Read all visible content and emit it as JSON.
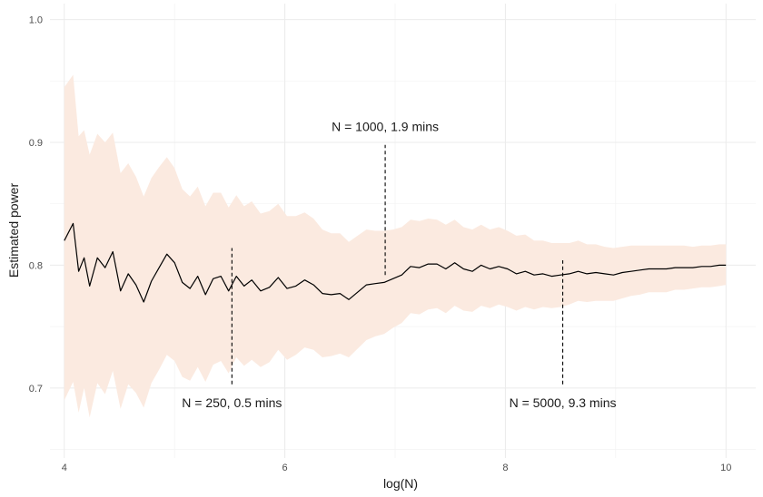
{
  "chart_data": {
    "type": "line",
    "title": "",
    "xlabel": "log(N)",
    "ylabel": "Estimated power",
    "xlim": [
      3.87,
      10.27
    ],
    "ylim": [
      0.643,
      1.013
    ],
    "x_ticks": [
      "4",
      "6",
      "8",
      "10"
    ],
    "y_ticks": [
      "0.7",
      "0.8",
      "0.9",
      "1.0"
    ],
    "grid": true,
    "colors": {
      "line": "#000000",
      "ribbon": "#fbeae0",
      "guide": "#000000"
    },
    "series": [
      {
        "x": [
          4.0,
          4.08,
          4.13,
          4.18,
          4.23,
          4.3,
          4.37,
          4.44,
          4.51,
          4.58,
          4.65,
          4.72,
          4.79,
          4.86,
          4.93,
          5.0,
          5.07,
          5.14,
          5.21,
          5.28,
          5.35,
          5.42,
          5.49,
          5.56,
          5.63,
          5.7,
          5.78,
          5.86,
          5.94,
          6.02,
          6.1,
          6.18,
          6.26,
          6.34,
          6.42,
          6.5,
          6.58,
          6.66,
          6.74,
          6.82,
          6.9,
          6.98,
          7.06,
          7.14,
          7.22,
          7.3,
          7.38,
          7.46,
          7.54,
          7.62,
          7.7,
          7.78,
          7.86,
          7.94,
          8.02,
          8.1,
          8.18,
          8.26,
          8.34,
          8.42,
          8.5,
          8.58,
          8.66,
          8.74,
          8.82,
          8.9,
          8.98,
          9.06,
          9.14,
          9.22,
          9.3,
          9.38,
          9.46,
          9.54,
          9.62,
          9.7,
          9.78,
          9.86,
          9.94,
          10.0
        ],
        "y": [
          0.82,
          0.834,
          0.795,
          0.806,
          0.783,
          0.806,
          0.798,
          0.811,
          0.779,
          0.793,
          0.784,
          0.77,
          0.787,
          0.798,
          0.809,
          0.802,
          0.786,
          0.781,
          0.791,
          0.776,
          0.789,
          0.791,
          0.779,
          0.791,
          0.783,
          0.788,
          0.779,
          0.782,
          0.79,
          0.781,
          0.783,
          0.788,
          0.784,
          0.777,
          0.776,
          0.777,
          0.772,
          0.778,
          0.784,
          0.785,
          0.786,
          0.789,
          0.792,
          0.799,
          0.798,
          0.801,
          0.801,
          0.797,
          0.802,
          0.797,
          0.795,
          0.8,
          0.797,
          0.799,
          0.797,
          0.793,
          0.795,
          0.792,
          0.793,
          0.791,
          0.792,
          0.793,
          0.795,
          0.793,
          0.794,
          0.793,
          0.792,
          0.794,
          0.795,
          0.796,
          0.797,
          0.797,
          0.797,
          0.798,
          0.798,
          0.798,
          0.799,
          0.799,
          0.8,
          0.8
        ],
        "lower": [
          0.69,
          0.705,
          0.68,
          0.7,
          0.676,
          0.704,
          0.695,
          0.714,
          0.683,
          0.703,
          0.696,
          0.684,
          0.704,
          0.715,
          0.727,
          0.722,
          0.709,
          0.706,
          0.717,
          0.705,
          0.719,
          0.722,
          0.712,
          0.725,
          0.718,
          0.723,
          0.717,
          0.721,
          0.731,
          0.723,
          0.727,
          0.733,
          0.731,
          0.725,
          0.726,
          0.728,
          0.725,
          0.732,
          0.739,
          0.742,
          0.744,
          0.749,
          0.753,
          0.761,
          0.76,
          0.764,
          0.765,
          0.761,
          0.767,
          0.763,
          0.762,
          0.767,
          0.765,
          0.768,
          0.766,
          0.763,
          0.766,
          0.764,
          0.766,
          0.765,
          0.766,
          0.768,
          0.771,
          0.77,
          0.771,
          0.771,
          0.771,
          0.773,
          0.775,
          0.776,
          0.778,
          0.778,
          0.778,
          0.78,
          0.78,
          0.781,
          0.782,
          0.782,
          0.783,
          0.784
        ],
        "upper": [
          0.945,
          0.955,
          0.905,
          0.91,
          0.89,
          0.907,
          0.9,
          0.908,
          0.875,
          0.883,
          0.872,
          0.856,
          0.871,
          0.88,
          0.888,
          0.879,
          0.862,
          0.856,
          0.864,
          0.848,
          0.859,
          0.859,
          0.847,
          0.857,
          0.848,
          0.852,
          0.842,
          0.844,
          0.85,
          0.84,
          0.84,
          0.843,
          0.838,
          0.829,
          0.826,
          0.826,
          0.819,
          0.824,
          0.829,
          0.828,
          0.828,
          0.829,
          0.831,
          0.837,
          0.836,
          0.838,
          0.837,
          0.833,
          0.837,
          0.831,
          0.829,
          0.833,
          0.829,
          0.831,
          0.828,
          0.824,
          0.825,
          0.82,
          0.82,
          0.818,
          0.818,
          0.818,
          0.82,
          0.817,
          0.817,
          0.815,
          0.814,
          0.815,
          0.816,
          0.816,
          0.816,
          0.816,
          0.816,
          0.816,
          0.816,
          0.815,
          0.816,
          0.816,
          0.817,
          0.817
        ]
      }
    ],
    "annotations": [
      {
        "label": "N = 250, 0.5 mins",
        "x": 5.52,
        "y_from": 0.703,
        "y_to": 0.814,
        "label_y": 0.688
      },
      {
        "label": "N = 1000, 1.9 mins",
        "x": 6.91,
        "y_from": 0.792,
        "y_to": 0.898,
        "label_y": 0.913
      },
      {
        "label": "N = 5000, 9.3 mins",
        "x": 8.52,
        "y_from": 0.703,
        "y_to": 0.804,
        "label_y": 0.688
      }
    ]
  }
}
